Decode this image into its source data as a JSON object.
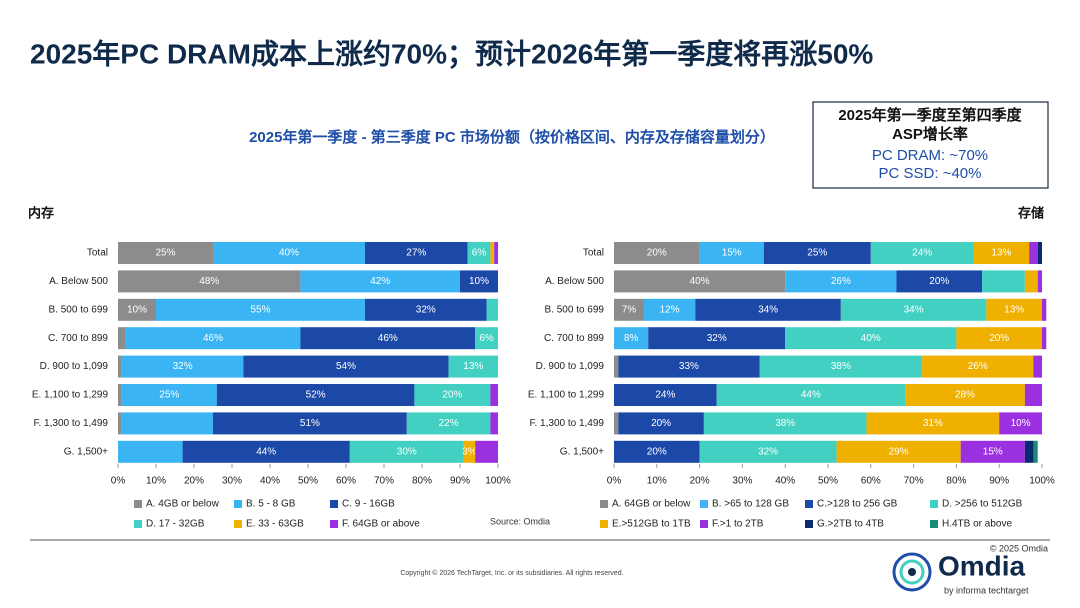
{
  "header": {
    "title": "2025年PC DRAM成本上涨约70%；预计2026年第一季度将再涨50%"
  },
  "asp_box": {
    "title_line1": "2025年第一季度至第四季度",
    "title_line2": "ASP增长率",
    "line1": "PC DRAM: ~70%",
    "line2": "PC SSD: ~40%"
  },
  "footer": {
    "copyright": "Copyright © 2026 TechTarget, Inc. or its subsidiaries. All rights reserved.",
    "brand_copyright": "© 2025 Omdia",
    "brand": "Omdia",
    "brand_sub": "by informa techtarget"
  },
  "chart_data": [
    {
      "type": "stacked-bar-horizontal",
      "title": "2025年第一季度 - 第三季度 PC 市场份额（按价格区间、内存及存储容量划分）",
      "panel_label": "内存",
      "source": "Source: Omdia",
      "categories": [
        "Total",
        "A. Below 500",
        "B. 500 to 699",
        "C. 700 to 899",
        "D. 900 to 1,099",
        "E. 1,100 to 1,299",
        "F. 1,300 to 1,499",
        "G. 1,500+"
      ],
      "xlim": [
        0,
        100
      ],
      "xticks": [
        {
          "value": 0,
          "label": "0%"
        },
        {
          "value": 10,
          "label": "10%"
        },
        {
          "value": 20,
          "label": "20%"
        },
        {
          "value": 30,
          "label": "30%"
        },
        {
          "value": 40,
          "label": "40%"
        },
        {
          "value": 50,
          "label": "50%"
        },
        {
          "value": 60,
          "label": "60%"
        },
        {
          "value": 70,
          "label": "70%"
        },
        {
          "value": 80,
          "label": "80%"
        },
        {
          "value": 90,
          "label": "90%"
        },
        {
          "value": 100,
          "label": "100%"
        }
      ],
      "series": [
        {
          "name": "A. 4GB or below",
          "color": "#8c8c8c",
          "values": [
            25,
            48,
            10,
            2,
            1,
            1,
            1,
            0
          ],
          "value_labels": [
            "25%",
            "48%",
            "10%",
            null,
            null,
            null,
            null,
            null
          ]
        },
        {
          "name": "B. 5 - 8 GB",
          "color": "#3ab4f2",
          "values": [
            40,
            42,
            55,
            46,
            32,
            25,
            24,
            17
          ],
          "value_labels": [
            "40%",
            "42%",
            "55%",
            "46%",
            "32%",
            "25%",
            null,
            null
          ]
        },
        {
          "name": "C. 9 - 16GB",
          "color": "#1c48a8",
          "values": [
            27,
            10,
            32,
            46,
            54,
            52,
            51,
            44
          ],
          "value_labels": [
            "27%",
            "10%",
            "32%",
            "46%",
            "54%",
            "52%",
            "51%",
            "44%"
          ]
        },
        {
          "name": "D. 17 - 32GB",
          "color": "#42d0c2",
          "values": [
            6,
            0,
            3,
            6,
            13,
            20,
            22,
            30
          ],
          "value_labels": [
            "6%",
            null,
            null,
            "6%",
            "13%",
            "20%",
            "22%",
            "30%"
          ]
        },
        {
          "name": "E. 33 - 63GB",
          "color": "#f0b000",
          "values": [
            1,
            0,
            0,
            0,
            0,
            0,
            0,
            3
          ],
          "value_labels": [
            null,
            null,
            null,
            null,
            null,
            null,
            null,
            "3%"
          ]
        },
        {
          "name": "F. 64GB or above",
          "color": "#9b30e0",
          "values": [
            1,
            0,
            0,
            0,
            0,
            2,
            2,
            6
          ],
          "value_labels": [
            null,
            null,
            null,
            null,
            null,
            null,
            null,
            null
          ]
        }
      ]
    },
    {
      "type": "stacked-bar-horizontal",
      "panel_label": "存储",
      "categories": [
        "Total",
        "A. Below 500",
        "B. 500 to 699",
        "C. 700 to 899",
        "D. 900 to 1,099",
        "E. 1,100 to 1,299",
        "F. 1,300 to 1,499",
        "G. 1,500+"
      ],
      "xlim": [
        0,
        100
      ],
      "xticks": [
        {
          "value": 0,
          "label": "0%"
        },
        {
          "value": 10,
          "label": "10%"
        },
        {
          "value": 20,
          "label": "20%"
        },
        {
          "value": 30,
          "label": "30%"
        },
        {
          "value": 40,
          "label": "40%"
        },
        {
          "value": 50,
          "label": "50%"
        },
        {
          "value": 60,
          "label": "60%"
        },
        {
          "value": 70,
          "label": "70%"
        },
        {
          "value": 80,
          "label": "80%"
        },
        {
          "value": 90,
          "label": "90%"
        },
        {
          "value": 100,
          "label": "100%"
        }
      ],
      "series": [
        {
          "name": "A. 64GB or below",
          "color": "#8c8c8c",
          "values": [
            20,
            40,
            7,
            0,
            1,
            0,
            1,
            0
          ],
          "value_labels": [
            "20%",
            "40%",
            "7%",
            null,
            null,
            null,
            null,
            null
          ]
        },
        {
          "name": "B. >65 to 128 GB",
          "color": "#3ab4f2",
          "values": [
            15,
            26,
            12,
            8,
            0,
            0,
            0,
            0
          ],
          "value_labels": [
            "15%",
            "26%",
            "12%",
            "8%",
            null,
            null,
            null,
            null
          ]
        },
        {
          "name": "C.>128 to 256 GB",
          "color": "#1c48a8",
          "values": [
            25,
            20,
            34,
            32,
            33,
            24,
            20,
            20
          ],
          "value_labels": [
            "25%",
            "20%",
            "34%",
            "32%",
            "33%",
            "24%",
            "20%",
            "20%"
          ]
        },
        {
          "name": "D. >256 to 512GB",
          "color": "#42d0c2",
          "values": [
            24,
            10,
            34,
            40,
            38,
            44,
            38,
            32
          ],
          "value_labels": [
            "24%",
            null,
            "34%",
            "40%",
            "38%",
            "44%",
            "38%",
            "32%"
          ]
        },
        {
          "name": "E.>512GB to 1TB",
          "color": "#f0b000",
          "values": [
            13,
            3,
            13,
            20,
            26,
            28,
            31,
            29
          ],
          "value_labels": [
            "13%",
            null,
            "13%",
            "20%",
            "26%",
            "28%",
            "31%",
            "29%"
          ]
        },
        {
          "name": "F.>1 to 2TB",
          "color": "#9b30e0",
          "values": [
            2,
            1,
            1,
            1,
            2,
            4,
            10,
            15
          ],
          "value_labels": [
            null,
            null,
            null,
            null,
            null,
            null,
            "10%",
            "15%"
          ]
        },
        {
          "name": "G.>2TB to 4TB",
          "color": "#0a2a6e",
          "values": [
            1,
            0,
            0,
            0,
            0,
            0,
            0,
            2
          ],
          "value_labels": [
            null,
            null,
            null,
            null,
            null,
            null,
            null,
            null
          ]
        },
        {
          "name": "H.4TB or above",
          "color": "#1a8a7a",
          "values": [
            0,
            0,
            0,
            0,
            0,
            0,
            0,
            1
          ],
          "value_labels": [
            null,
            null,
            null,
            null,
            null,
            null,
            null,
            null
          ]
        }
      ]
    }
  ]
}
